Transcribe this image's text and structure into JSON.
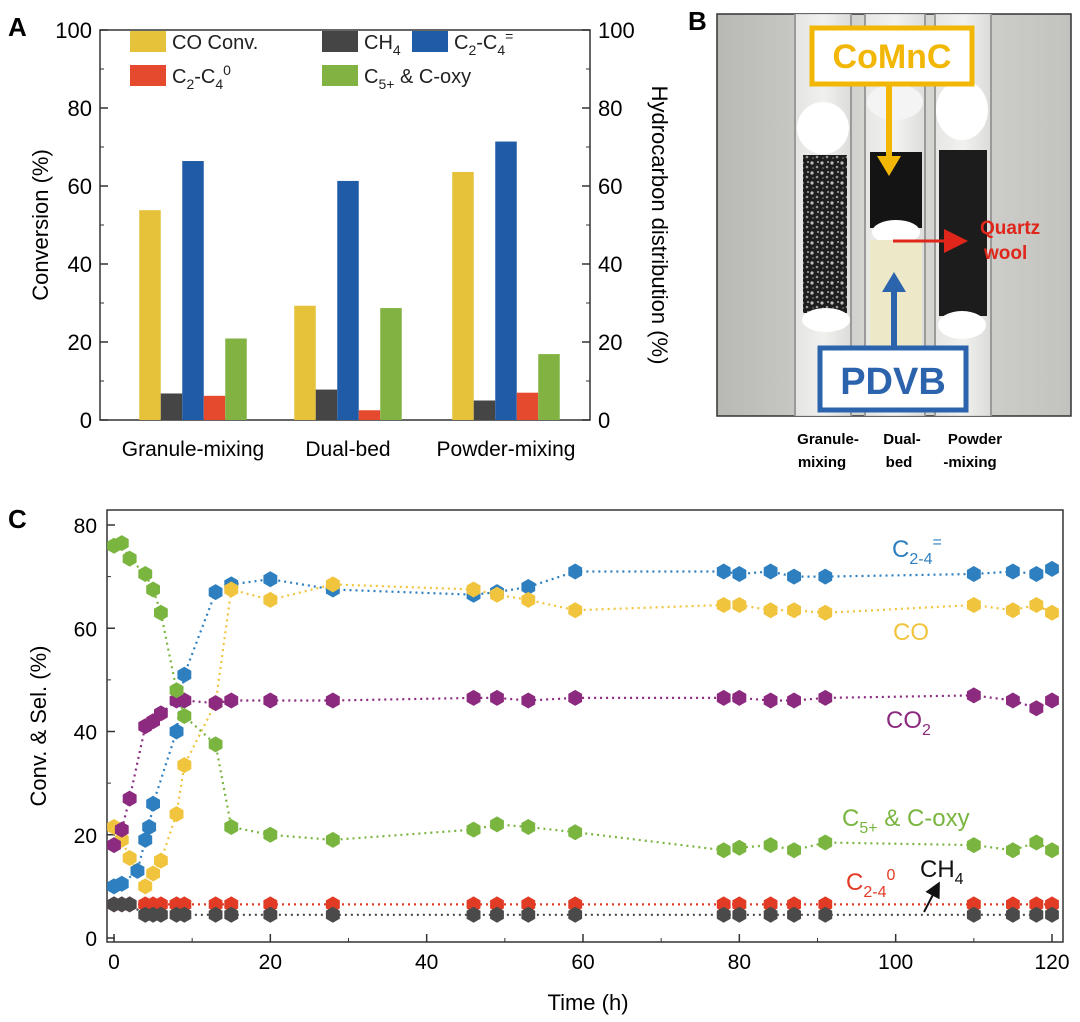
{
  "panels": {
    "a": "A",
    "b": "B",
    "c": "C"
  },
  "chart_data": [
    {
      "panel": "A",
      "type": "bar",
      "categories": [
        "Granule-mixing",
        "Dual-bed",
        "Powder-mixing"
      ],
      "ylabel": "Conversion (%)",
      "ylabel_right": "Hydrocarbon distribution (%)",
      "ylim": [
        0,
        100
      ],
      "yticks": [
        "0",
        "20",
        "40",
        "60",
        "80",
        "100"
      ],
      "legend_position": "top",
      "series": [
        {
          "key": "co",
          "name": "CO Conv.",
          "color": "#e6c23a",
          "values": [
            53.8,
            29.3,
            63.6
          ]
        },
        {
          "key": "ch4",
          "name": "CH4",
          "label_main": "CH",
          "label_sub": "4",
          "color": "#454545",
          "values": [
            6.8,
            7.8,
            5.0
          ]
        },
        {
          "key": "olefin",
          "name": "C2-C4=",
          "label_main": "C",
          "label_sub": "2",
          "label_mid": "-C",
          "label_sub2": "4",
          "label_sup": "=",
          "color": "#1f5ba6",
          "values": [
            66.4,
            61.3,
            71.4
          ]
        },
        {
          "key": "paraffin",
          "name": "C2-C40",
          "label_main": "C",
          "label_sub": "2",
          "label_mid": "-C",
          "label_sub2": "4",
          "label_sup": "0",
          "color": "#e64a2e",
          "values": [
            6.2,
            2.5,
            7.0
          ]
        },
        {
          "key": "c5",
          "name": "C5+ & C-oxy",
          "label_main": "C",
          "label_sub": "5+",
          "label_mid": " & C-oxy",
          "color": "#82b342",
          "values": [
            20.9,
            28.7,
            16.9
          ]
        }
      ]
    },
    {
      "panel": "C",
      "type": "scatter",
      "xlabel": "Time (h)",
      "ylabel": "Conv. & Sel. (%)",
      "xlim": [
        0,
        120
      ],
      "ylim": [
        0,
        80
      ],
      "xticks": [
        "0",
        "20",
        "40",
        "60",
        "80",
        "100",
        "120"
      ],
      "yticks": [
        "0",
        "20",
        "40",
        "60",
        "80"
      ],
      "series": [
        {
          "key": "olefin",
          "name": "C2-4=",
          "label_main": "C",
          "label_sub": "2-4",
          "label_sup": "=",
          "color": "#2e7fbf",
          "x": [
            0,
            1,
            3,
            4,
            4.5,
            5,
            8,
            9,
            13,
            15,
            20,
            28,
            46,
            49,
            53,
            59,
            78,
            80,
            84,
            87,
            91,
            110,
            115,
            118,
            120
          ],
          "y": [
            10,
            10.5,
            13,
            19,
            21.5,
            26,
            40,
            51,
            67,
            68.5,
            69.5,
            67.5,
            66.5,
            67,
            68,
            71,
            71,
            70.5,
            71,
            70,
            70,
            70.5,
            71,
            70.5,
            71.5
          ]
        },
        {
          "key": "co",
          "name": "CO",
          "color": "#f1c43d",
          "x": [
            0,
            1,
            2,
            4,
            5,
            6,
            8,
            9,
            13,
            15,
            20,
            28,
            46,
            49,
            53,
            59,
            78,
            80,
            84,
            87,
            91,
            110,
            115,
            118,
            120
          ],
          "y": [
            21.5,
            19,
            15.5,
            10,
            12.5,
            15,
            24,
            33.5,
            45.5,
            67.5,
            65.5,
            68.5,
            67.5,
            66.5,
            65.5,
            63.5,
            64.5,
            64.5,
            63.5,
            63.5,
            63,
            64.5,
            63.5,
            64.5,
            63
          ]
        },
        {
          "key": "co2",
          "name": "CO2",
          "label_main": "CO",
          "label_sub": "2",
          "color": "#8b2a7e",
          "x": [
            0,
            1,
            2,
            4,
            5,
            6,
            8,
            9,
            13,
            15,
            20,
            28,
            46,
            49,
            53,
            59,
            78,
            80,
            84,
            87,
            91,
            110,
            115,
            118,
            120
          ],
          "y": [
            18,
            21,
            27,
            41,
            42,
            43.5,
            46,
            46,
            45.5,
            46,
            46,
            46,
            46.5,
            46.5,
            46,
            46.5,
            46.5,
            46.5,
            46,
            46,
            46.5,
            47,
            46,
            44.5,
            46
          ]
        },
        {
          "key": "c5",
          "name": "C5+ & C-oxy",
          "label_main": "C",
          "label_sub": "5+",
          "label_mid": " & C-oxy",
          "color": "#7ab540",
          "x": [
            0,
            1,
            2,
            4,
            5,
            6,
            8,
            9,
            13,
            15,
            20,
            28,
            46,
            49,
            53,
            59,
            78,
            80,
            84,
            87,
            91,
            110,
            115,
            118,
            120
          ],
          "y": [
            76,
            76.5,
            73.5,
            70.5,
            67.5,
            63,
            48,
            43,
            37.5,
            21.5,
            20,
            19,
            21,
            22,
            21.5,
            20.5,
            17,
            17.5,
            18,
            17,
            18.5,
            18,
            17,
            18.5,
            17
          ]
        },
        {
          "key": "paraffin",
          "name": "C2-40",
          "label_main": "C",
          "label_sub": "2-4",
          "label_sup": "0",
          "color": "#e13b25",
          "x": [
            0,
            1,
            2,
            4,
            5,
            6,
            8,
            9,
            13,
            15,
            20,
            28,
            46,
            49,
            53,
            59,
            78,
            80,
            84,
            87,
            91,
            110,
            115,
            118,
            120
          ],
          "y": [
            6.5,
            6.5,
            6.5,
            6.5,
            6.5,
            6.5,
            6.5,
            6.5,
            6.5,
            6.5,
            6.5,
            6.5,
            6.5,
            6.5,
            6.5,
            6.5,
            6.5,
            6.5,
            6.5,
            6.5,
            6.5,
            6.5,
            6.5,
            6.5,
            6.5
          ]
        },
        {
          "key": "ch4",
          "name": "CH4",
          "label_main": "CH",
          "label_sub": "4",
          "color": "#4a4a4a",
          "x": [
            0,
            1,
            2,
            4,
            5,
            6,
            8,
            9,
            13,
            15,
            20,
            28,
            46,
            49,
            53,
            59,
            78,
            80,
            84,
            87,
            91,
            110,
            115,
            118,
            120
          ],
          "y": [
            6.5,
            6.5,
            6.5,
            4.5,
            4.5,
            4.5,
            4.5,
            4.5,
            4.5,
            4.5,
            4.5,
            4.5,
            4.5,
            4.5,
            4.5,
            4.5,
            4.5,
            4.5,
            4.5,
            4.5,
            4.5,
            4.5,
            4.5,
            4.5,
            4.5
          ]
        }
      ]
    }
  ],
  "photo": {
    "catalyst_label": "CoMnC",
    "support_label": "PDVB",
    "annotation_line1": "Quartz",
    "annotation_line2": "wool",
    "columns": [
      {
        "line1": "Granule-",
        "line2": "mixing"
      },
      {
        "line1": "Dual-",
        "line2": "bed"
      },
      {
        "line1": "Powder",
        "line2": "-mixing"
      }
    ],
    "colors": {
      "catalyst": "#f2b705",
      "support": "#2c63ad",
      "arrow": "#e0261b"
    }
  }
}
